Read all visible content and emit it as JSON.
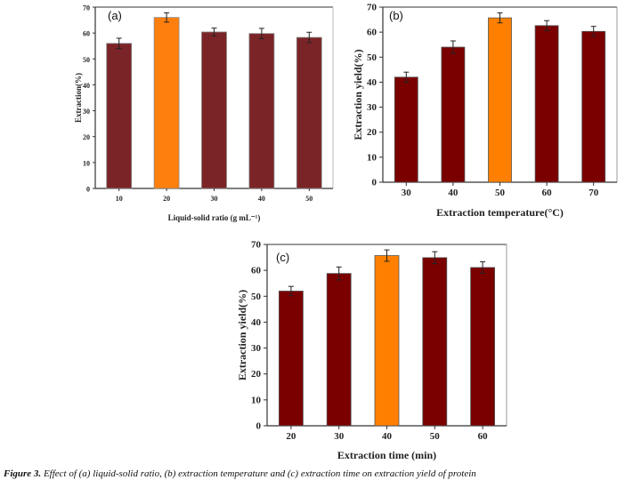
{
  "caption": {
    "prefix": "Figure 3.",
    "text": "Effect of (a) liquid-solid ratio, (b) extraction temperature and (c) extraction time on extraction yield of protein"
  },
  "chart_data": [
    {
      "type": "bar",
      "panel_label": "(a)",
      "title": "",
      "xlabel": "Liquid-solid ratio (g mL⁻¹)",
      "ylabel": "Extraction(%)",
      "categories": [
        "10",
        "20",
        "30",
        "40",
        "50"
      ],
      "values": [
        56.0,
        66.0,
        60.4,
        59.8,
        58.3
      ],
      "errors": [
        2.0,
        1.8,
        1.5,
        2.0,
        2.0
      ],
      "highlight_index": 1,
      "ylim": [
        0,
        70
      ],
      "yticks": [
        0,
        10,
        20,
        30,
        40,
        50,
        60,
        70
      ],
      "grid": false,
      "colors": {
        "bar": "#7b2427",
        "highlight": "#ff7f0e",
        "edge": "#888888"
      }
    },
    {
      "type": "bar",
      "panel_label": "(b)",
      "title": "",
      "xlabel": "Extraction temperature(°C)",
      "ylabel": "Extraction yield(%)",
      "categories": [
        "30",
        "40",
        "50",
        "60",
        "70"
      ],
      "values": [
        42.0,
        54.0,
        65.7,
        62.6,
        60.3
      ],
      "errors": [
        2.0,
        2.5,
        2.0,
        2.0,
        2.0
      ],
      "highlight_index": 2,
      "ylim": [
        0,
        70
      ],
      "yticks": [
        0,
        10,
        20,
        30,
        40,
        50,
        60,
        70
      ],
      "grid": false,
      "colors": {
        "bar": "#7a0000",
        "highlight": "#ff8000",
        "edge": "#555555"
      }
    },
    {
      "type": "bar",
      "panel_label": "(c)",
      "title": "",
      "xlabel": "Extraction time (min)",
      "ylabel": "Extraction yield(%)",
      "categories": [
        "20",
        "30",
        "40",
        "50",
        "60"
      ],
      "values": [
        52.0,
        58.8,
        65.7,
        64.9,
        61.1
      ],
      "errors": [
        1.8,
        2.5,
        2.2,
        2.3,
        2.2
      ],
      "highlight_index": 2,
      "ylim": [
        0,
        70
      ],
      "yticks": [
        0,
        10,
        20,
        30,
        40,
        50,
        60,
        70
      ],
      "grid": false,
      "colors": {
        "bar": "#7a0000",
        "highlight": "#ff8000",
        "edge": "#555555"
      }
    }
  ]
}
